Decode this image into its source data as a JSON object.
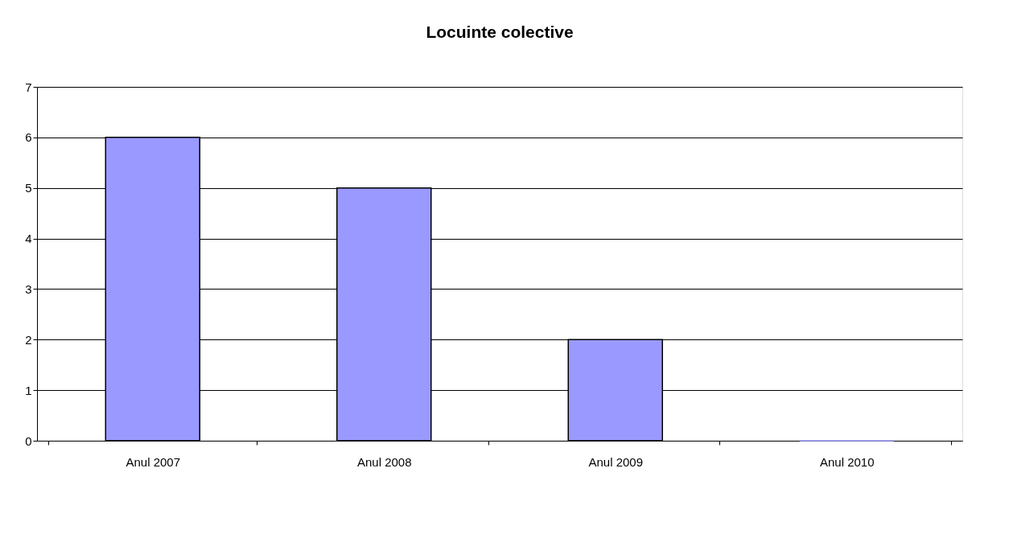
{
  "chart_data": {
    "type": "bar",
    "title": "Locuinte colective",
    "categories": [
      "Anul 2007",
      "Anul 2008",
      "Anul 2009",
      "Anul 2010"
    ],
    "values": [
      6,
      5,
      2,
      0
    ],
    "color": "#9999ff",
    "ylim": [
      0,
      7
    ],
    "yticks": [
      0,
      1,
      2,
      3,
      4,
      5,
      6,
      7
    ],
    "grid": "y"
  }
}
